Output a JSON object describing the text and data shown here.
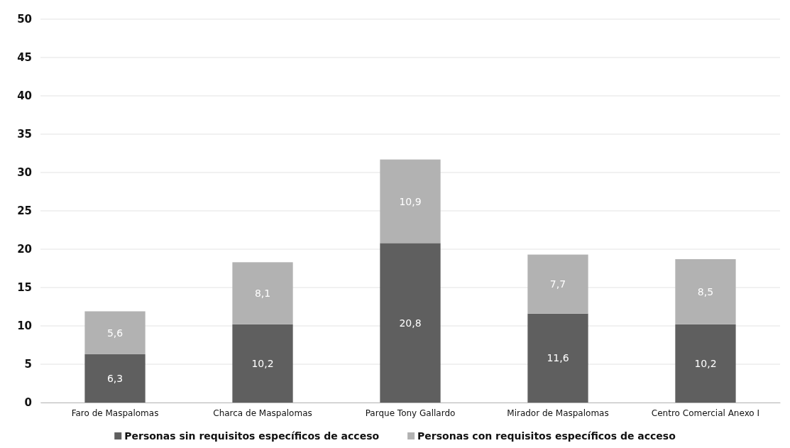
{
  "chart_data": {
    "type": "bar",
    "stacked": true,
    "categories": [
      "Faro de Maspalomas",
      "Charca de Maspalomas",
      "Parque Tony Gallardo",
      "Mirador de Maspalomas",
      "Centro Comercial Anexo I"
    ],
    "series": [
      {
        "name": "Personas sin requisitos específicos de acceso",
        "color": "#5f5f5f",
        "values": [
          6.3,
          10.2,
          20.8,
          11.6,
          10.2
        ],
        "value_labels": [
          "6,3",
          "10,2",
          "20,8",
          "11,6",
          "10,2"
        ]
      },
      {
        "name": "Personas con requisitos específicos de acceso",
        "color": "#b2b2b2",
        "values": [
          5.6,
          8.1,
          10.9,
          7.7,
          8.5
        ],
        "value_labels": [
          "5,6",
          "8,1",
          "10,9",
          "7,7",
          "8,5"
        ]
      }
    ],
    "ylim": [
      0,
      50
    ],
    "yticks": [
      0,
      5,
      10,
      15,
      20,
      25,
      30,
      35,
      40,
      45,
      50
    ],
    "grid": "y",
    "legend": "bottom"
  }
}
